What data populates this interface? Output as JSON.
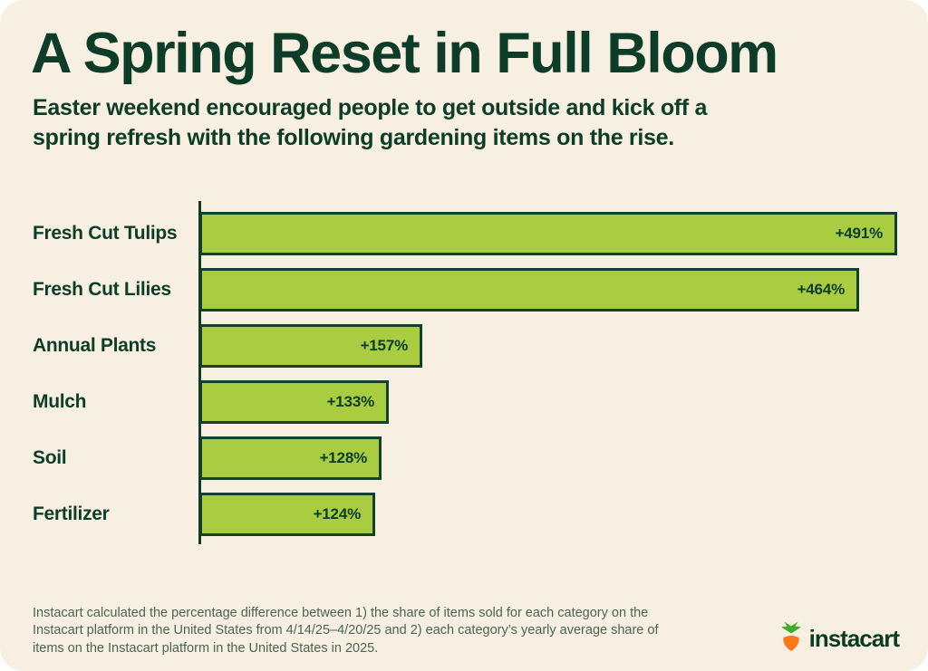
{
  "page": {
    "title": "A Spring Reset in Full Bloom",
    "subtitle_lines": [
      "Easter weekend encouraged people to get outside and kick off a",
      "spring refresh with the following gardening items on the rise."
    ],
    "footnote_lines": [
      "Instacart calculated the percentage difference between 1) the share of items sold for each category on the",
      "Instacart platform in the United States from 4/14/25–4/20/25 and 2) each category’s yearly average share of",
      "items on the Instacart platform in the United States in 2025."
    ],
    "logo_text": "instacart"
  },
  "colors": {
    "background": "#F7EFE2",
    "dark_green": "#0D3D26",
    "bar_fill": "#A9CC40",
    "bar_border": "#12402A",
    "footnote_text": "#4C6355",
    "carrot_orange": "#F97919",
    "leaf_green": "#3DAE2B"
  },
  "chart_data": {
    "type": "bar",
    "orientation": "horizontal",
    "categories": [
      "Fresh Cut Tulips",
      "Fresh Cut Lilies",
      "Annual Plants",
      "Mulch",
      "Soil",
      "Fertilizer"
    ],
    "values": [
      491,
      464,
      157,
      133,
      128,
      124
    ],
    "value_labels": [
      "+491%",
      "+464%",
      "+157%",
      "+133%",
      "+128%",
      "+124%"
    ],
    "value_unit": "percent_increase",
    "xlim": [
      0,
      500
    ],
    "grid": false,
    "ticks_visible": false,
    "baseline_visible": true,
    "legend": null
  }
}
